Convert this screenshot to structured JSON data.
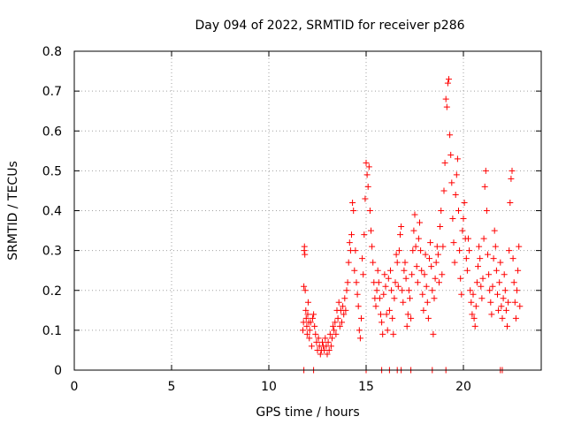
{
  "chart_data": {
    "type": "scatter",
    "title": "Day 094 of 2022, SRMTID for receiver p286",
    "xlabel": "GPS time / hours",
    "ylabel": "SRMTID / TECUs",
    "xlim": [
      0,
      24
    ],
    "ylim": [
      0,
      0.8
    ],
    "x_ticks": [
      0,
      5,
      10,
      15,
      20
    ],
    "y_ticks": [
      0,
      0.1,
      0.2,
      0.3,
      0.4,
      0.5,
      0.6,
      0.7,
      0.8
    ],
    "x_tick_labels": [
      "0",
      "5",
      "10",
      "15",
      "20"
    ],
    "y_tick_labels": [
      "0",
      "0.1",
      "0.2",
      "0.3",
      "0.4",
      "0.5",
      "0.6",
      "0.7",
      "0.8"
    ],
    "grid": true,
    "marker": "plus",
    "color": "#ff0000",
    "series": [
      {
        "points": [
          [
            11.75,
            0.1
          ],
          [
            11.78,
            0.12
          ],
          [
            11.8,
            0.21
          ],
          [
            11.82,
            0.3
          ],
          [
            11.83,
            0.31
          ],
          [
            11.85,
            0.29
          ],
          [
            11.87,
            0.2
          ],
          [
            11.9,
            0.15
          ],
          [
            11.92,
            0.13
          ],
          [
            11.95,
            0.11
          ],
          [
            11.97,
            0.09
          ],
          [
            12.0,
            0.14
          ],
          [
            12.02,
            0.17
          ],
          [
            12.05,
            0.12
          ],
          [
            12.08,
            0.08
          ],
          [
            12.1,
            0.1
          ],
          [
            12.15,
            0.12
          ],
          [
            12.2,
            0.06
          ],
          [
            12.25,
            0.13
          ],
          [
            12.3,
            0.14
          ],
          [
            12.35,
            0.11
          ],
          [
            12.4,
            0.09
          ],
          [
            12.45,
            0.07
          ],
          [
            12.5,
            0.05
          ],
          [
            12.55,
            0.08
          ],
          [
            12.6,
            0.06
          ],
          [
            12.65,
            0.04
          ],
          [
            12.7,
            0.05
          ],
          [
            12.75,
            0.07
          ],
          [
            12.8,
            0.06
          ],
          [
            12.85,
            0.05
          ],
          [
            12.9,
            0.08
          ],
          [
            12.95,
            0.06
          ],
          [
            13.0,
            0.04
          ],
          [
            13.05,
            0.07
          ],
          [
            13.1,
            0.05
          ],
          [
            13.15,
            0.09
          ],
          [
            13.2,
            0.06
          ],
          [
            13.25,
            0.08
          ],
          [
            13.3,
            0.11
          ],
          [
            13.35,
            0.1
          ],
          [
            13.4,
            0.12
          ],
          [
            13.45,
            0.09
          ],
          [
            13.5,
            0.15
          ],
          [
            13.55,
            0.13
          ],
          [
            13.6,
            0.17
          ],
          [
            13.65,
            0.11
          ],
          [
            13.7,
            0.15
          ],
          [
            13.75,
            0.12
          ],
          [
            13.8,
            0.16
          ],
          [
            13.85,
            0.14
          ],
          [
            13.9,
            0.18
          ],
          [
            13.95,
            0.15
          ],
          [
            14.0,
            0.2
          ],
          [
            14.05,
            0.22
          ],
          [
            14.1,
            0.27
          ],
          [
            14.15,
            0.32
          ],
          [
            14.2,
            0.3
          ],
          [
            14.25,
            0.34
          ],
          [
            14.3,
            0.42
          ],
          [
            14.35,
            0.4
          ],
          [
            14.4,
            0.25
          ],
          [
            14.45,
            0.3
          ],
          [
            14.5,
            0.22
          ],
          [
            14.55,
            0.19
          ],
          [
            14.6,
            0.16
          ],
          [
            14.65,
            0.1
          ],
          [
            14.7,
            0.08
          ],
          [
            14.75,
            0.13
          ],
          [
            14.8,
            0.28
          ],
          [
            14.85,
            0.24
          ],
          [
            14.9,
            0.34
          ],
          [
            14.95,
            0.43
          ],
          [
            15.0,
            0.52
          ],
          [
            15.05,
            0.49
          ],
          [
            15.1,
            0.46
          ],
          [
            15.15,
            0.51
          ],
          [
            15.2,
            0.4
          ],
          [
            15.25,
            0.35
          ],
          [
            15.3,
            0.31
          ],
          [
            15.35,
            0.27
          ],
          [
            15.4,
            0.22
          ],
          [
            15.45,
            0.18
          ],
          [
            15.5,
            0.16
          ],
          [
            15.55,
            0.2
          ],
          [
            15.6,
            0.25
          ],
          [
            15.65,
            0.22
          ],
          [
            15.7,
            0.18
          ],
          [
            15.75,
            0.14
          ],
          [
            15.8,
            0.12
          ],
          [
            15.85,
            0.09
          ],
          [
            15.9,
            0.19
          ],
          [
            15.95,
            0.24
          ],
          [
            16.0,
            0.21
          ],
          [
            16.05,
            0.14
          ],
          [
            16.1,
            0.1
          ],
          [
            16.15,
            0.23
          ],
          [
            16.2,
            0.15
          ],
          [
            16.25,
            0.25
          ],
          [
            16.3,
            0.2
          ],
          [
            16.35,
            0.13
          ],
          [
            16.4,
            0.09
          ],
          [
            16.45,
            0.18
          ],
          [
            16.5,
            0.22
          ],
          [
            16.55,
            0.29
          ],
          [
            16.6,
            0.27
          ],
          [
            16.65,
            0.21
          ],
          [
            16.7,
            0.3
          ],
          [
            16.75,
            0.34
          ],
          [
            16.8,
            0.36
          ],
          [
            16.85,
            0.2
          ],
          [
            16.9,
            0.17
          ],
          [
            16.95,
            0.25
          ],
          [
            17.0,
            0.27
          ],
          [
            17.05,
            0.23
          ],
          [
            17.1,
            0.11
          ],
          [
            17.15,
            0.14
          ],
          [
            17.2,
            0.2
          ],
          [
            17.25,
            0.18
          ],
          [
            17.3,
            0.13
          ],
          [
            17.35,
            0.24
          ],
          [
            17.4,
            0.3
          ],
          [
            17.45,
            0.35
          ],
          [
            17.5,
            0.39
          ],
          [
            17.55,
            0.31
          ],
          [
            17.6,
            0.26
          ],
          [
            17.65,
            0.22
          ],
          [
            17.7,
            0.33
          ],
          [
            17.75,
            0.37
          ],
          [
            17.8,
            0.3
          ],
          [
            17.85,
            0.25
          ],
          [
            17.9,
            0.19
          ],
          [
            17.95,
            0.15
          ],
          [
            18.0,
            0.24
          ],
          [
            18.05,
            0.29
          ],
          [
            18.1,
            0.21
          ],
          [
            18.15,
            0.17
          ],
          [
            18.2,
            0.13
          ],
          [
            18.25,
            0.28
          ],
          [
            18.3,
            0.32
          ],
          [
            18.35,
            0.26
          ],
          [
            18.4,
            0.2
          ],
          [
            18.45,
            0.09
          ],
          [
            18.5,
            0.18
          ],
          [
            18.55,
            0.23
          ],
          [
            18.6,
            0.27
          ],
          [
            18.65,
            0.31
          ],
          [
            18.7,
            0.29
          ],
          [
            18.75,
            0.22
          ],
          [
            18.8,
            0.36
          ],
          [
            18.85,
            0.4
          ],
          [
            18.9,
            0.24
          ],
          [
            18.95,
            0.31
          ],
          [
            19.0,
            0.45
          ],
          [
            19.05,
            0.52
          ],
          [
            19.1,
            0.68
          ],
          [
            19.15,
            0.66
          ],
          [
            19.2,
            0.72
          ],
          [
            19.25,
            0.73
          ],
          [
            19.3,
            0.59
          ],
          [
            19.35,
            0.54
          ],
          [
            19.4,
            0.47
          ],
          [
            19.45,
            0.38
          ],
          [
            19.5,
            0.32
          ],
          [
            19.55,
            0.27
          ],
          [
            19.6,
            0.44
          ],
          [
            19.65,
            0.49
          ],
          [
            19.7,
            0.53
          ],
          [
            19.75,
            0.4
          ],
          [
            19.8,
            0.3
          ],
          [
            19.85,
            0.23
          ],
          [
            19.9,
            0.19
          ],
          [
            19.95,
            0.35
          ],
          [
            20.0,
            0.38
          ],
          [
            20.05,
            0.42
          ],
          [
            20.1,
            0.33
          ],
          [
            20.15,
            0.28
          ],
          [
            20.2,
            0.25
          ],
          [
            20.25,
            0.33
          ],
          [
            20.3,
            0.3
          ],
          [
            20.35,
            0.2
          ],
          [
            20.4,
            0.17
          ],
          [
            20.45,
            0.14
          ],
          [
            20.5,
            0.19
          ],
          [
            20.55,
            0.13
          ],
          [
            20.6,
            0.11
          ],
          [
            20.65,
            0.16
          ],
          [
            20.7,
            0.22
          ],
          [
            20.75,
            0.26
          ],
          [
            20.8,
            0.31
          ],
          [
            20.85,
            0.28
          ],
          [
            20.9,
            0.21
          ],
          [
            20.95,
            0.18
          ],
          [
            21.0,
            0.23
          ],
          [
            21.05,
            0.33
          ],
          [
            21.1,
            0.46
          ],
          [
            21.15,
            0.5
          ],
          [
            21.2,
            0.4
          ],
          [
            21.25,
            0.29
          ],
          [
            21.3,
            0.24
          ],
          [
            21.35,
            0.2
          ],
          [
            21.4,
            0.17
          ],
          [
            21.45,
            0.14
          ],
          [
            21.5,
            0.21
          ],
          [
            21.55,
            0.28
          ],
          [
            21.6,
            0.35
          ],
          [
            21.65,
            0.31
          ],
          [
            21.7,
            0.25
          ],
          [
            21.75,
            0.19
          ],
          [
            21.8,
            0.15
          ],
          [
            21.85,
            0.22
          ],
          [
            21.9,
            0.27
          ],
          [
            21.95,
            0.16
          ],
          [
            22.0,
            0.13
          ],
          [
            22.05,
            0.18
          ],
          [
            22.1,
            0.24
          ],
          [
            22.15,
            0.2
          ],
          [
            22.2,
            0.15
          ],
          [
            22.25,
            0.11
          ],
          [
            22.3,
            0.17
          ],
          [
            22.35,
            0.3
          ],
          [
            22.4,
            0.42
          ],
          [
            22.45,
            0.48
          ],
          [
            22.5,
            0.5
          ],
          [
            22.55,
            0.28
          ],
          [
            22.6,
            0.22
          ],
          [
            22.65,
            0.17
          ],
          [
            22.7,
            0.13
          ],
          [
            22.75,
            0.2
          ],
          [
            22.8,
            0.25
          ],
          [
            22.85,
            0.31
          ],
          [
            22.9,
            0.16
          ],
          [
            11.8,
            0.0
          ],
          [
            12.3,
            0.0
          ],
          [
            15.0,
            0.0
          ],
          [
            15.8,
            0.0
          ],
          [
            16.2,
            0.0
          ],
          [
            16.6,
            0.0
          ],
          [
            16.8,
            0.0
          ],
          [
            17.3,
            0.0
          ],
          [
            18.4,
            0.0
          ],
          [
            19.1,
            0.0
          ],
          [
            21.9,
            0.0
          ],
          [
            22.0,
            0.0
          ]
        ]
      }
    ]
  }
}
